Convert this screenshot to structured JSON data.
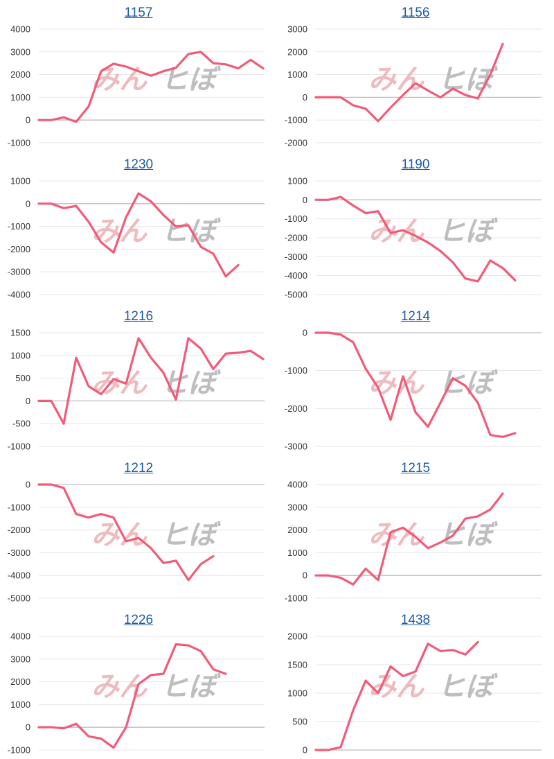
{
  "chart_data": [
    {
      "type": "line",
      "title": "1157",
      "ylim": [
        -1000,
        4000
      ],
      "ticks": [
        -1000,
        0,
        1000,
        2000,
        3000,
        4000
      ],
      "series": [
        {
          "values": [
            0,
            0,
            120,
            -80,
            600,
            2150,
            2480,
            2350,
            2150,
            1950,
            2150,
            2300,
            2900,
            3000,
            2500,
            2450,
            2270,
            2650,
            2270
          ]
        }
      ]
    },
    {
      "type": "line",
      "title": "1156",
      "ylim": [
        -2000,
        3000
      ],
      "ticks": [
        -2000,
        -1000,
        0,
        1000,
        2000,
        3000
      ],
      "series": [
        {
          "values": [
            0,
            0,
            0,
            -350,
            -500,
            -1050,
            -450,
            100,
            620,
            300,
            0,
            380,
            100,
            -50,
            1000,
            2350
          ]
        }
      ]
    },
    {
      "type": "line",
      "title": "1230",
      "ylim": [
        -4000,
        1000
      ],
      "ticks": [
        -4000,
        -3000,
        -2000,
        -1000,
        0,
        1000
      ],
      "series": [
        {
          "values": [
            0,
            0,
            -200,
            -100,
            -800,
            -1700,
            -2150,
            -600,
            450,
            100,
            -500,
            -1000,
            -950,
            -1900,
            -2200,
            -3200,
            -2700
          ]
        }
      ]
    },
    {
      "type": "line",
      "title": "1190",
      "ylim": [
        -5000,
        1000
      ],
      "ticks": [
        -5000,
        -4000,
        -3000,
        -2000,
        -1000,
        0,
        1000
      ],
      "series": [
        {
          "values": [
            0,
            0,
            150,
            -300,
            -700,
            -600,
            -1750,
            -1600,
            -1900,
            -2250,
            -2700,
            -3300,
            -4150,
            -4300,
            -3200,
            -3600,
            -4250
          ]
        }
      ]
    },
    {
      "type": "line",
      "title": "1216",
      "ylim": [
        -1000,
        1500
      ],
      "ticks": [
        -1000,
        -500,
        0,
        500,
        1000,
        1500
      ],
      "series": [
        {
          "values": [
            0,
            0,
            -500,
            950,
            320,
            150,
            480,
            380,
            1380,
            950,
            620,
            30,
            1380,
            1150,
            700,
            1040,
            1060,
            1100,
            920
          ]
        }
      ]
    },
    {
      "type": "line",
      "title": "1214",
      "ylim": [
        -3000,
        0
      ],
      "ticks": [
        -3000,
        -2000,
        -1000,
        0
      ],
      "series": [
        {
          "values": [
            0,
            0,
            -50,
            -250,
            -950,
            -1450,
            -2300,
            -1150,
            -2100,
            -2480,
            -1850,
            -1200,
            -1400,
            -1850,
            -2700,
            -2750,
            -2650
          ]
        }
      ]
    },
    {
      "type": "line",
      "title": "1212",
      "ylim": [
        -5000,
        0
      ],
      "ticks": [
        -5000,
        -4000,
        -3000,
        -2000,
        -1000,
        0
      ],
      "series": [
        {
          "values": [
            0,
            0,
            -150,
            -1300,
            -1450,
            -1300,
            -1450,
            -2500,
            -2350,
            -2800,
            -3450,
            -3350,
            -4200,
            -3500,
            -3150
          ]
        }
      ]
    },
    {
      "type": "line",
      "title": "1215",
      "ylim": [
        -1000,
        4000
      ],
      "ticks": [
        -1000,
        0,
        1000,
        2000,
        3000,
        4000
      ],
      "series": [
        {
          "values": [
            0,
            0,
            -100,
            -400,
            300,
            -200,
            1900,
            2100,
            1700,
            1200,
            1450,
            1750,
            2500,
            2600,
            2900,
            3600
          ]
        }
      ]
    },
    {
      "type": "line",
      "title": "1226",
      "ylim": [
        -1000,
        4000
      ],
      "ticks": [
        -1000,
        0,
        1000,
        2000,
        3000,
        4000
      ],
      "series": [
        {
          "values": [
            0,
            0,
            -50,
            150,
            -400,
            -500,
            -900,
            0,
            1900,
            2300,
            2350,
            3650,
            3600,
            3350,
            2550,
            2350
          ]
        }
      ]
    },
    {
      "type": "line",
      "title": "1438",
      "ylim": [
        0,
        2000
      ],
      "ticks": [
        0,
        500,
        1000,
        1500,
        2000
      ],
      "series": [
        {
          "values": [
            0,
            0,
            50,
            700,
            1220,
            1000,
            1470,
            1300,
            1380,
            1870,
            1740,
            1760,
            1680,
            1900
          ]
        }
      ]
    }
  ]
}
